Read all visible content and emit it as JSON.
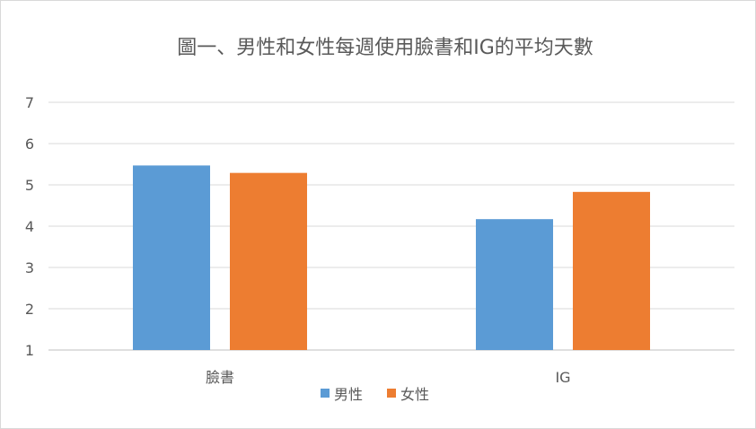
{
  "chart_data": {
    "type": "bar",
    "title": "圖一、男性和女性每週使用臉書和IG的平均天數",
    "categories": [
      "臉書",
      "IG"
    ],
    "series": [
      {
        "name": "男性",
        "values": [
          5.47,
          4.17
        ],
        "color": "#5b9bd5"
      },
      {
        "name": "女性",
        "values": [
          5.29,
          4.83
        ],
        "color": "#ed7d31"
      }
    ],
    "ylim": [
      1,
      7
    ],
    "yticks": [
      "1",
      "2",
      "3",
      "4",
      "5",
      "6",
      "7"
    ],
    "grid": true,
    "legend_position": "bottom"
  }
}
